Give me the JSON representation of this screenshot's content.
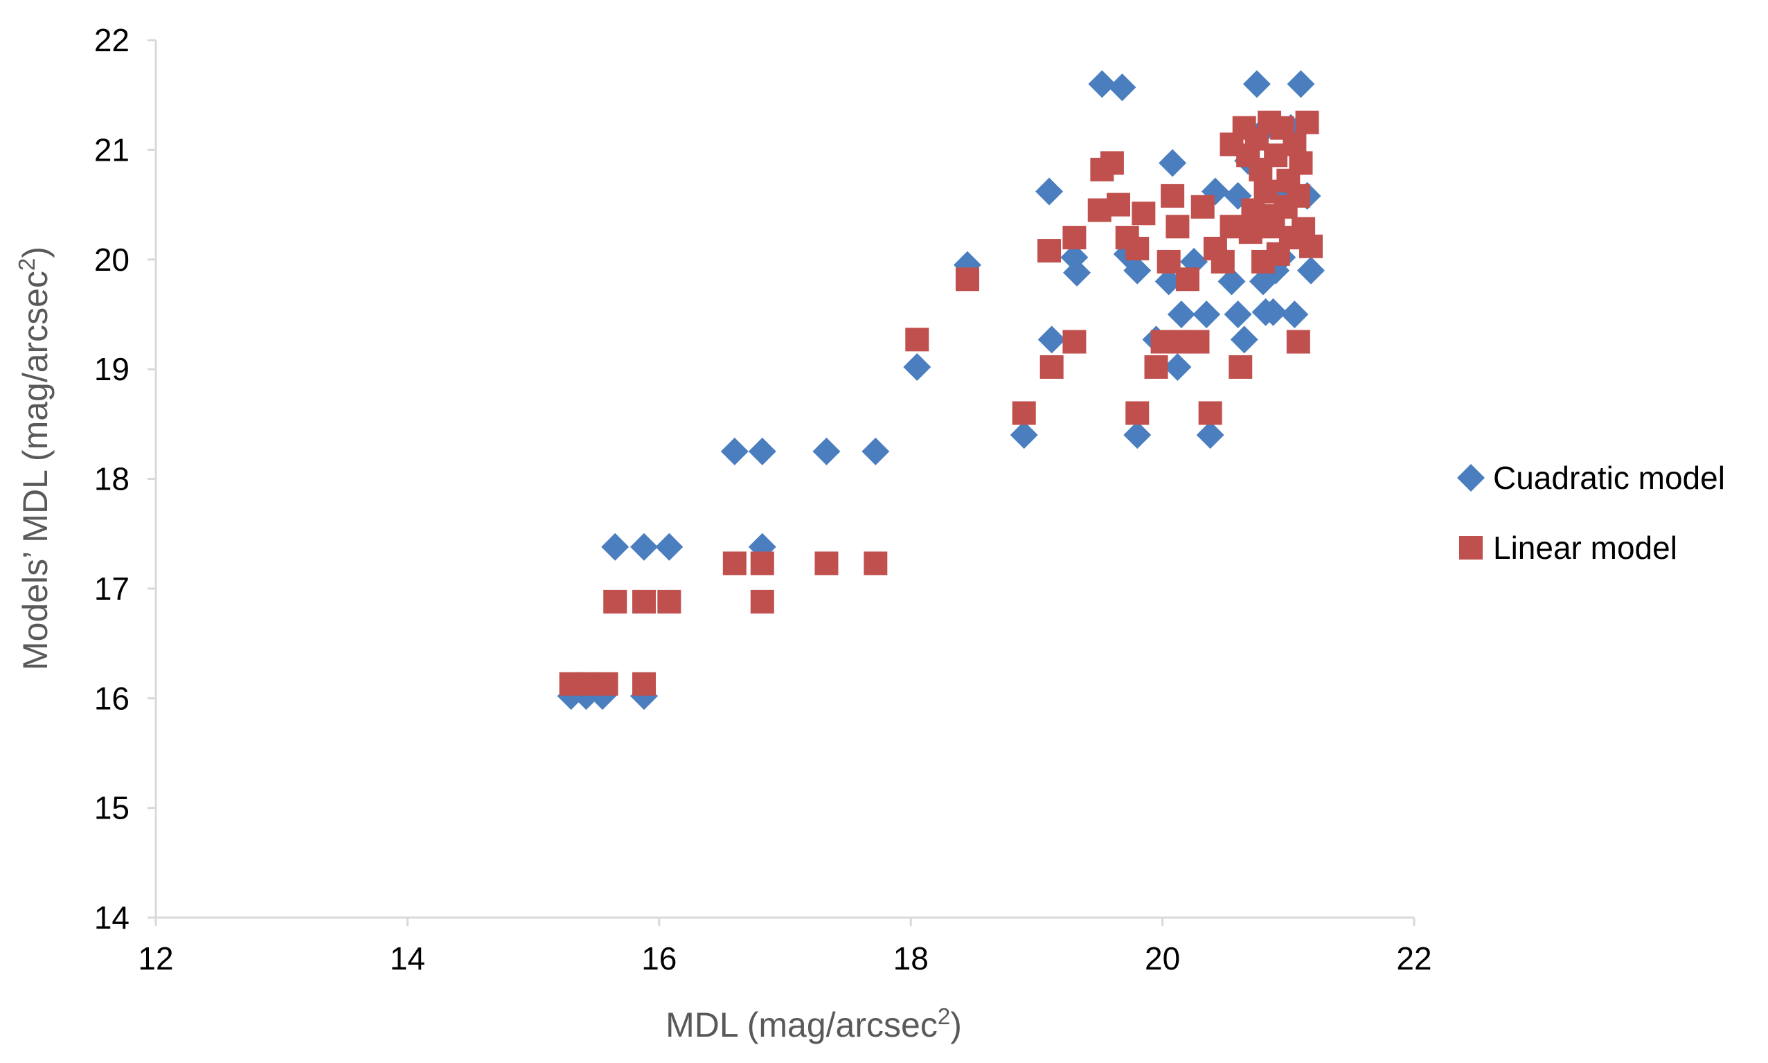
{
  "chart_data": {
    "type": "scatter",
    "title": "",
    "xlabel": "MDL (mag/arcsec",
    "xlabel_sup": "2",
    "xlabel_close": ")",
    "ylabel": "Models’ MDL (mag/arcsec",
    "ylabel_sup": "2",
    "ylabel_close": ")",
    "xlim": [
      12,
      22
    ],
    "ylim": [
      14,
      22
    ],
    "xticks": [
      "12",
      "14",
      "16",
      "18",
      "20",
      "22"
    ],
    "yticks": [
      "14",
      "15",
      "16",
      "17",
      "18",
      "19",
      "20",
      "21",
      "22"
    ],
    "grid": false,
    "legend_position": "right",
    "series": [
      {
        "name": "Cuadratic model",
        "marker": "diamond",
        "color": "#4a7ebf",
        "points": [
          [
            15.3,
            16.02
          ],
          [
            15.42,
            16.02
          ],
          [
            15.55,
            16.02
          ],
          [
            15.88,
            16.02
          ],
          [
            15.65,
            17.38
          ],
          [
            15.88,
            17.38
          ],
          [
            16.08,
            17.38
          ],
          [
            16.82,
            17.38
          ],
          [
            16.6,
            18.25
          ],
          [
            16.82,
            18.25
          ],
          [
            17.33,
            18.25
          ],
          [
            17.72,
            18.25
          ],
          [
            18.05,
            19.02
          ],
          [
            18.45,
            19.95
          ],
          [
            18.9,
            18.4
          ],
          [
            19.1,
            20.62
          ],
          [
            19.12,
            19.27
          ],
          [
            19.32,
            19.88
          ],
          [
            19.3,
            20.02
          ],
          [
            19.52,
            21.6
          ],
          [
            19.68,
            21.57
          ],
          [
            19.72,
            20.05
          ],
          [
            19.8,
            19.9
          ],
          [
            19.8,
            18.4
          ],
          [
            19.95,
            19.27
          ],
          [
            20.05,
            19.8
          ],
          [
            20.08,
            20.88
          ],
          [
            20.12,
            19.02
          ],
          [
            20.15,
            19.5
          ],
          [
            20.25,
            19.98
          ],
          [
            20.35,
            19.5
          ],
          [
            20.38,
            18.4
          ],
          [
            20.42,
            20.62
          ],
          [
            20.55,
            19.8
          ],
          [
            20.6,
            20.58
          ],
          [
            20.6,
            19.5
          ],
          [
            20.65,
            19.27
          ],
          [
            20.68,
            20.9
          ],
          [
            20.75,
            21.6
          ],
          [
            20.8,
            19.8
          ],
          [
            20.82,
            19.52
          ],
          [
            20.88,
            19.52
          ],
          [
            20.9,
            19.9
          ],
          [
            20.95,
            20.02
          ],
          [
            21.05,
            19.5
          ],
          [
            21.1,
            21.6
          ],
          [
            21.15,
            20.58
          ],
          [
            21.18,
            19.9
          ],
          [
            20.78,
            21.15
          ],
          [
            21.02,
            21.2
          ],
          [
            20.95,
            20.62
          ],
          [
            20.7,
            20.3
          ]
        ]
      },
      {
        "name": "Linear model",
        "marker": "square",
        "color": "#c0504d",
        "points": [
          [
            15.3,
            16.13
          ],
          [
            15.42,
            16.13
          ],
          [
            15.58,
            16.13
          ],
          [
            15.88,
            16.13
          ],
          [
            15.65,
            16.88
          ],
          [
            15.88,
            16.88
          ],
          [
            16.08,
            16.88
          ],
          [
            16.82,
            16.88
          ],
          [
            16.6,
            17.23
          ],
          [
            16.82,
            17.23
          ],
          [
            17.33,
            17.23
          ],
          [
            17.72,
            17.23
          ],
          [
            18.05,
            19.27
          ],
          [
            18.45,
            19.82
          ],
          [
            18.9,
            18.6
          ],
          [
            19.1,
            20.08
          ],
          [
            19.12,
            19.02
          ],
          [
            19.3,
            19.25
          ],
          [
            19.3,
            20.2
          ],
          [
            19.5,
            20.45
          ],
          [
            19.52,
            20.82
          ],
          [
            19.6,
            20.88
          ],
          [
            19.65,
            20.5
          ],
          [
            19.72,
            20.2
          ],
          [
            19.8,
            20.1
          ],
          [
            19.8,
            18.6
          ],
          [
            19.85,
            20.42
          ],
          [
            19.95,
            19.02
          ],
          [
            20.0,
            19.25
          ],
          [
            20.05,
            19.98
          ],
          [
            20.08,
            20.58
          ],
          [
            20.12,
            20.3
          ],
          [
            20.15,
            19.25
          ],
          [
            20.2,
            19.82
          ],
          [
            20.28,
            19.25
          ],
          [
            20.32,
            20.48
          ],
          [
            20.38,
            18.6
          ],
          [
            20.42,
            20.1
          ],
          [
            20.48,
            19.98
          ],
          [
            20.55,
            20.3
          ],
          [
            20.55,
            21.05
          ],
          [
            20.62,
            19.02
          ],
          [
            20.65,
            21.2
          ],
          [
            20.7,
            20.25
          ],
          [
            20.72,
            20.45
          ],
          [
            20.75,
            21.1
          ],
          [
            20.78,
            20.82
          ],
          [
            20.8,
            19.98
          ],
          [
            20.82,
            20.62
          ],
          [
            20.85,
            21.25
          ],
          [
            20.88,
            20.3
          ],
          [
            20.9,
            20.95
          ],
          [
            20.92,
            20.05
          ],
          [
            20.95,
            21.2
          ],
          [
            20.98,
            20.48
          ],
          [
            21.02,
            20.2
          ],
          [
            21.05,
            21.05
          ],
          [
            21.08,
            20.58
          ],
          [
            21.1,
            20.88
          ],
          [
            21.12,
            20.28
          ],
          [
            21.15,
            21.25
          ],
          [
            21.18,
            20.12
          ],
          [
            21.08,
            19.25
          ],
          [
            21.0,
            20.72
          ],
          [
            20.68,
            20.95
          ],
          [
            20.86,
            20.4
          ]
        ]
      }
    ]
  }
}
